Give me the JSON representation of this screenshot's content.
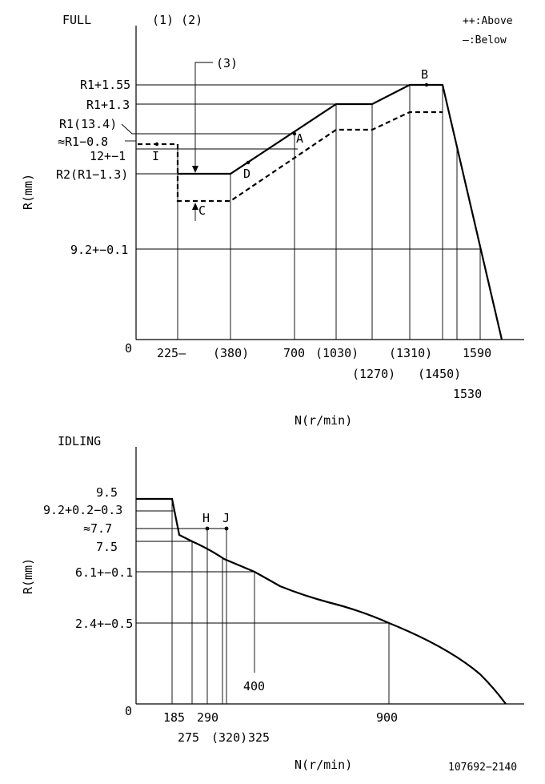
{
  "full": {
    "title": "FULL",
    "notes_12": "(1) (2)",
    "legend_above": "++:Above",
    "legend_below": "—:Below",
    "note_3": "(3)",
    "y_axis_label": "R(mm)",
    "x_axis_label": "N(r/min)",
    "origin": "0",
    "y_labels": [
      "R1+1.55",
      "R1+1.3",
      "R1(13.4)",
      "≈R1−0.8",
      "12+−1",
      "R2(R1−1.3)",
      "9.2+−0.1"
    ],
    "x_labels_top": [
      "225—",
      "(380)",
      "700",
      "(1030)",
      "(1310)",
      "1590"
    ],
    "x_labels_bottom": [
      "(1270)",
      "(1450)"
    ],
    "x_label_1530": "1530",
    "points": {
      "A": "A",
      "B": "B",
      "C": "C",
      "D": "D",
      "I": "I"
    }
  },
  "idling": {
    "title": "IDLING",
    "y_axis_label": "R(mm)",
    "x_axis_label": "N(r/min)",
    "origin": "0",
    "y_labels": [
      "9.5",
      "9.2+0.2−0.3",
      "≈7.7",
      "7.5",
      "6.1+−0.1",
      "2.4+−0.5"
    ],
    "x_labels_top": [
      "185",
      "290",
      "900"
    ],
    "x_labels_bottom": [
      "275",
      "(320)",
      "325"
    ],
    "x_label_400": "400",
    "points": {
      "H": "H",
      "J": "J"
    }
  },
  "doc_number": "107692−2140"
}
